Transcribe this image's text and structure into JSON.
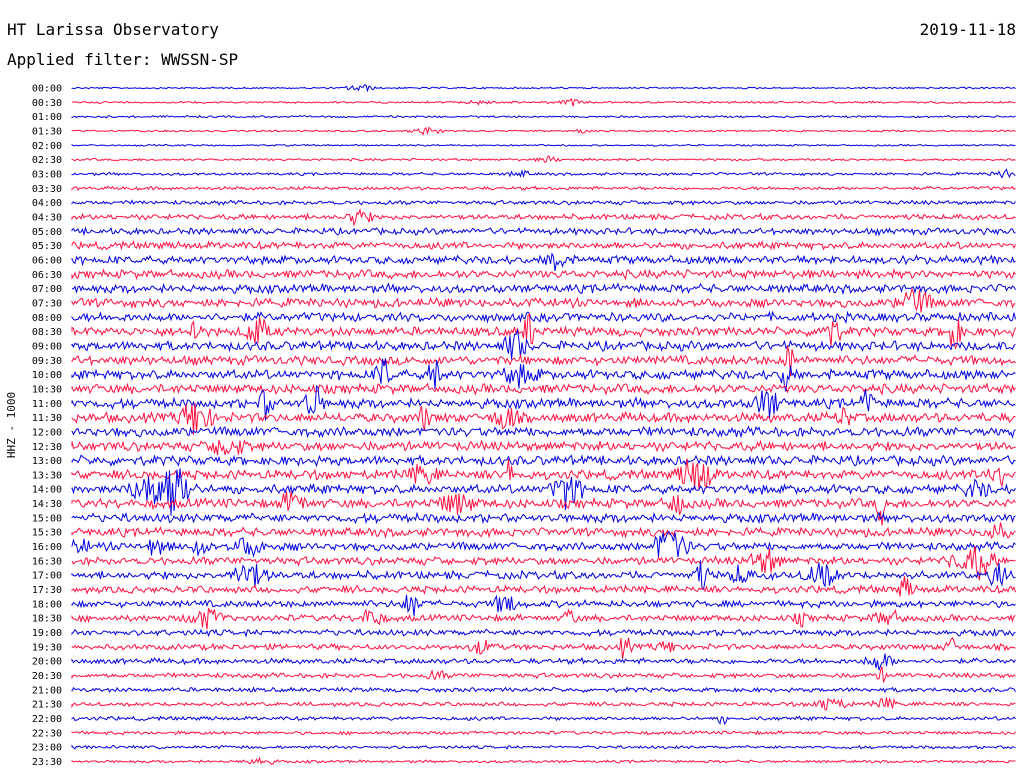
{
  "header": {
    "station": "HT Larissa Observatory",
    "date": "2019-11-18",
    "filter": "Applied filter: WWSSN-SP"
  },
  "chart_data": {
    "type": "line",
    "ylabel": "HHZ - 1000",
    "row_labels": [
      "00:00",
      "00:30",
      "01:00",
      "01:30",
      "02:00",
      "02:30",
      "03:00",
      "03:30",
      "04:00",
      "04:30",
      "05:00",
      "05:30",
      "06:00",
      "06:30",
      "07:00",
      "07:30",
      "08:00",
      "08:30",
      "09:00",
      "09:30",
      "10:00",
      "10:30",
      "11:00",
      "11:30",
      "12:00",
      "12:30",
      "13:00",
      "13:30",
      "14:00",
      "14:30",
      "15:00",
      "15:30",
      "16:00",
      "16:30",
      "17:00",
      "17:30",
      "18:00",
      "18:30",
      "19:00",
      "19:30",
      "20:00",
      "20:30",
      "21:00",
      "21:30",
      "22:00",
      "22:30",
      "23:00",
      "23:30"
    ],
    "row_colors": [
      "#0000e0",
      "#ff1040"
    ],
    "noise_level": [
      1.0,
      1.2,
      1.2,
      1.0,
      1.0,
      1.4,
      1.6,
      2.0,
      2.4,
      3.2,
      3.8,
      4.2,
      4.8,
      5.0,
      5.0,
      5.2,
      5.2,
      5.2,
      5.4,
      5.4,
      5.6,
      5.6,
      5.6,
      5.6,
      5.6,
      5.6,
      5.6,
      5.4,
      5.4,
      5.4,
      5.2,
      5.0,
      4.8,
      4.6,
      4.6,
      4.2,
      4.0,
      3.8,
      3.6,
      3.4,
      3.2,
      2.8,
      2.6,
      2.4,
      2.2,
      2.0,
      1.8,
      1.6
    ]
  }
}
